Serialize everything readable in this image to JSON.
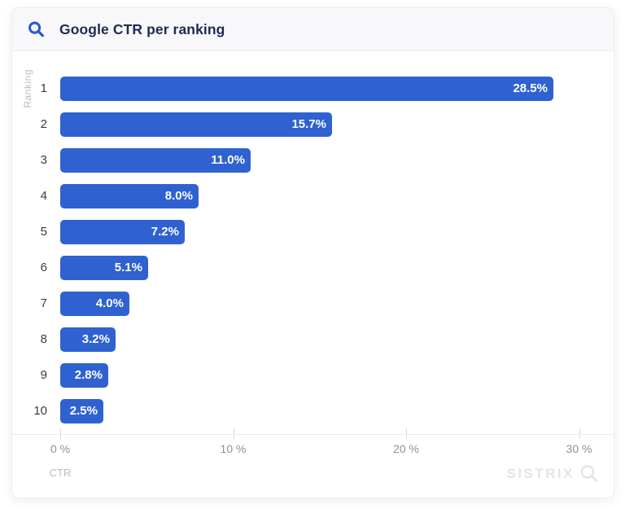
{
  "header": {
    "icon": "search-icon"
  },
  "chart_data": {
    "type": "bar",
    "orientation": "horizontal",
    "title": "Google CTR per ranking",
    "categories": [
      "1",
      "2",
      "3",
      "4",
      "5",
      "6",
      "7",
      "8",
      "9",
      "10"
    ],
    "values": [
      28.5,
      15.7,
      11.0,
      8.0,
      7.2,
      5.1,
      4.0,
      3.2,
      2.8,
      2.5
    ],
    "value_labels": [
      "28.5%",
      "15.7%",
      "11.0%",
      "8.0%",
      "7.2%",
      "5.1%",
      "4.0%",
      "3.2%",
      "2.8%",
      "2.5%"
    ],
    "xlabel": "CTR",
    "ylabel": "Ranking",
    "xlim": [
      0,
      32
    ],
    "x_ticks": [
      {
        "value": 0,
        "label": "0 %"
      },
      {
        "value": 10,
        "label": "10 %"
      },
      {
        "value": 20,
        "label": "20 %"
      },
      {
        "value": 30,
        "label": "30 %"
      }
    ],
    "bar_color": "#2f62d0",
    "value_label_color": "#ffffff",
    "grid": false,
    "legend": false
  },
  "watermark": {
    "text": "SISTRIX",
    "icon": "magnifier-icon"
  },
  "colors": {
    "accent_blue": "#2b5bd3",
    "title_navy": "#1c2d51",
    "axis_gray": "#8f9194",
    "muted_gray": "#b9bcc2",
    "watermark_gray": "#e4e4e8"
  }
}
